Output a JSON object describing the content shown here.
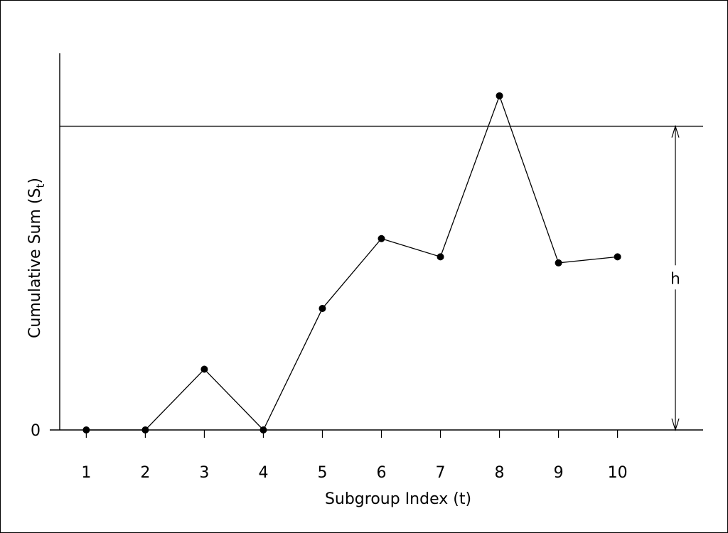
{
  "chart_data": {
    "type": "line",
    "title": "",
    "xlabel": "Subgroup Index  (t)",
    "ylabel": "Cumulative Sum (S",
    "ylabel_subscript": "t",
    "ylabel_close": ")",
    "x": [
      1,
      2,
      3,
      4,
      5,
      6,
      7,
      8,
      9,
      10
    ],
    "xticks": [
      "1",
      "2",
      "3",
      "4",
      "5",
      "6",
      "7",
      "8",
      "9",
      "10"
    ],
    "y": [
      0,
      0,
      0.2,
      0,
      0.4,
      0.63,
      0.57,
      1.1,
      0.55,
      0.57
    ],
    "yticks": [
      {
        "value": 0,
        "label": "0"
      }
    ],
    "xlim": [
      0.55,
      11.45
    ],
    "ylim": [
      0,
      1.24
    ],
    "threshold": {
      "value": 1.0,
      "label": "h"
    },
    "grid": false,
    "colors": {
      "line": "#000000",
      "background": "#ffffff",
      "frame": "#000000"
    }
  }
}
